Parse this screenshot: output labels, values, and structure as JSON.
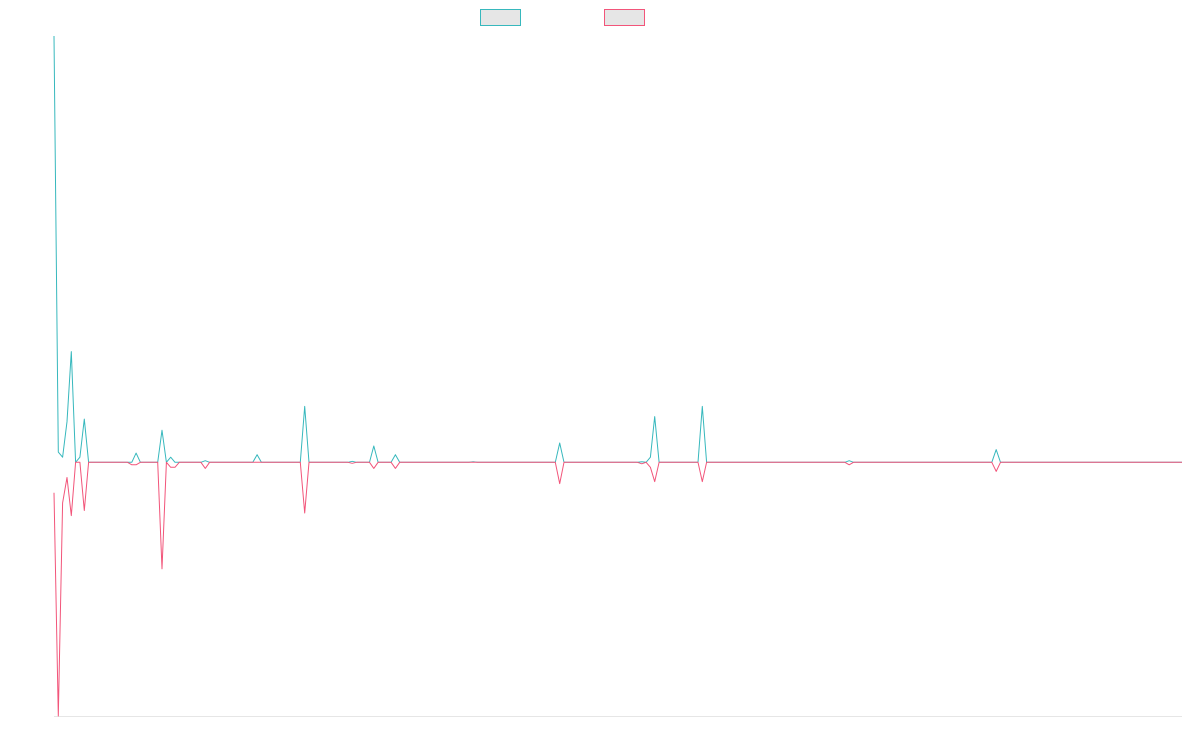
{
  "chart_data": {
    "type": "line",
    "title": "",
    "xlabel": "",
    "ylabel": "",
    "grid": false,
    "legend_position": "top-center",
    "x_range": [
      0,
      261
    ],
    "y_range": [
      -500,
      840
    ],
    "series": [
      {
        "color": "#37b8bd",
        "points": [
          [
            0,
            840
          ],
          [
            1,
            20
          ],
          [
            2,
            10
          ],
          [
            3,
            80
          ],
          [
            4,
            218
          ],
          [
            5,
            0
          ],
          [
            6,
            10
          ],
          [
            7,
            85
          ],
          [
            8,
            0
          ],
          [
            17,
            0
          ],
          [
            18,
            0
          ],
          [
            19,
            18
          ],
          [
            20,
            0
          ],
          [
            24,
            0
          ],
          [
            25,
            63
          ],
          [
            26,
            0
          ],
          [
            27,
            10
          ],
          [
            28,
            0
          ],
          [
            34,
            0
          ],
          [
            35,
            3
          ],
          [
            36,
            0
          ],
          [
            46,
            0
          ],
          [
            47,
            15
          ],
          [
            48,
            0
          ],
          [
            57,
            0
          ],
          [
            58,
            110
          ],
          [
            59,
            0
          ],
          [
            68,
            0
          ],
          [
            69,
            2
          ],
          [
            70,
            0
          ],
          [
            73,
            0
          ],
          [
            74,
            32
          ],
          [
            75,
            0
          ],
          [
            78,
            0
          ],
          [
            79,
            15
          ],
          [
            80,
            0
          ],
          [
            96,
            0
          ],
          [
            97,
            1
          ],
          [
            98,
            0
          ],
          [
            116,
            0
          ],
          [
            117,
            38
          ],
          [
            118,
            0
          ],
          [
            135,
            0
          ],
          [
            136,
            1
          ],
          [
            137,
            0
          ],
          [
            138,
            10
          ],
          [
            139,
            90
          ],
          [
            140,
            0
          ],
          [
            149,
            0
          ],
          [
            150,
            110
          ],
          [
            151,
            0
          ],
          [
            183,
            0
          ],
          [
            184,
            3
          ],
          [
            185,
            0
          ],
          [
            217,
            0
          ],
          [
            218,
            25
          ],
          [
            219,
            0
          ],
          [
            261,
            0
          ]
        ]
      },
      {
        "color": "#f2557a",
        "points": [
          [
            0,
            -60
          ],
          [
            1,
            -500
          ],
          [
            2,
            -80
          ],
          [
            3,
            -30
          ],
          [
            4,
            -105
          ],
          [
            5,
            0
          ],
          [
            6,
            0
          ],
          [
            7,
            -95
          ],
          [
            8,
            0
          ],
          [
            17,
            0
          ],
          [
            18,
            -5
          ],
          [
            19,
            -5
          ],
          [
            20,
            0
          ],
          [
            24,
            0
          ],
          [
            25,
            -210
          ],
          [
            26,
            0
          ],
          [
            27,
            -10
          ],
          [
            28,
            -10
          ],
          [
            29,
            0
          ],
          [
            34,
            0
          ],
          [
            35,
            -12
          ],
          [
            36,
            0
          ],
          [
            57,
            0
          ],
          [
            58,
            -100
          ],
          [
            59,
            0
          ],
          [
            68,
            0
          ],
          [
            69,
            -2
          ],
          [
            70,
            0
          ],
          [
            73,
            0
          ],
          [
            74,
            -12
          ],
          [
            75,
            0
          ],
          [
            78,
            0
          ],
          [
            79,
            -12
          ],
          [
            80,
            0
          ],
          [
            116,
            0
          ],
          [
            117,
            -42
          ],
          [
            118,
            0
          ],
          [
            135,
            0
          ],
          [
            136,
            -3
          ],
          [
            137,
            0
          ],
          [
            138,
            -10
          ],
          [
            139,
            -38
          ],
          [
            140,
            0
          ],
          [
            149,
            0
          ],
          [
            150,
            -38
          ],
          [
            151,
            0
          ],
          [
            183,
            0
          ],
          [
            184,
            -5
          ],
          [
            185,
            0
          ],
          [
            217,
            0
          ],
          [
            218,
            -18
          ],
          [
            219,
            0
          ],
          [
            261,
            0
          ]
        ]
      }
    ]
  }
}
